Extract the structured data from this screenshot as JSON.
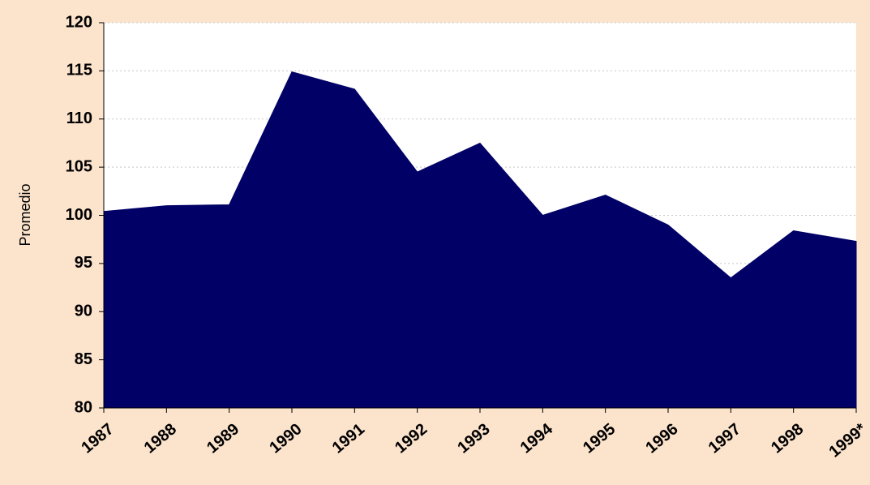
{
  "chart_data": {
    "type": "area",
    "y_label": "Promedio",
    "categories": [
      "1987",
      "1988",
      "1989",
      "1990",
      "1991",
      "1992",
      "1993",
      "1994",
      "1995",
      "1996",
      "1997",
      "1998",
      "1999*"
    ],
    "values": [
      100.4,
      101.0,
      101.1,
      114.9,
      113.1,
      104.5,
      107.5,
      100.0,
      102.1,
      99.0,
      93.5,
      98.4,
      97.3
    ],
    "color": "#000066",
    "ylim": [
      80,
      120
    ],
    "yticks": [
      80,
      85,
      90,
      95,
      100,
      105,
      110,
      115,
      120
    ],
    "grid": true
  }
}
